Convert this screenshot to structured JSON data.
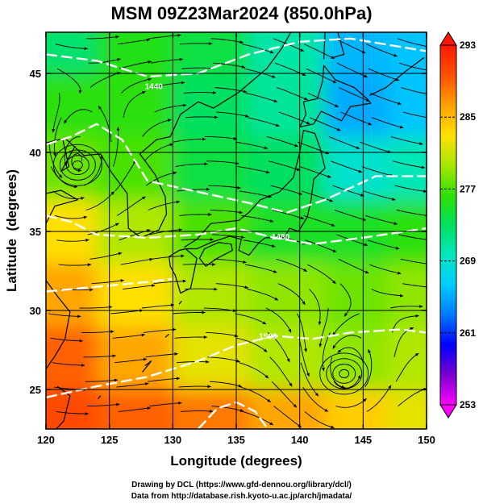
{
  "title": "MSM 09Z23Mar2024 (850.0hPa)",
  "xlabel": "Longitude (degrees)",
  "ylabel": "Latitude  (degrees)",
  "credit": {
    "line1": "Drawing by DCL (https://www.gfd-dennou.org/library/dcl/)",
    "line2": "Data from http://database.rish.kyoto-u.ac.jp/arch/jmadata/"
  },
  "colors": {
    "contour": "#ffffff",
    "streamline": "#000000",
    "coastline": "#000000"
  },
  "chart_data": {
    "type": "heatmap",
    "variable": "temperature (K) with wind streamlines and geopotential height contours",
    "xlim": [
      120,
      150
    ],
    "ylim": [
      22.5,
      47.6
    ],
    "xticks": [
      120,
      125,
      130,
      135,
      140,
      145,
      150
    ],
    "yticks": [
      25,
      30,
      35,
      40,
      45
    ],
    "colorbar": {
      "min": 253,
      "max": 293,
      "ticks": [
        253,
        261,
        269,
        277,
        285,
        293
      ],
      "stops": [
        "#ff00ff",
        "#7a00d0",
        "#0000ff",
        "#0078ff",
        "#00ccff",
        "#00e8c0",
        "#00e060",
        "#30e000",
        "#a8e800",
        "#ffe000",
        "#ffa000",
        "#ff5000",
        "#ff1800"
      ]
    },
    "temperature_samples": [
      {
        "lon": 121,
        "lat": 47,
        "t": 272.5
      },
      {
        "lon": 127,
        "lat": 47,
        "t": 275.5
      },
      {
        "lon": 133,
        "lat": 47,
        "t": 274
      },
      {
        "lon": 139,
        "lat": 47,
        "t": 270.5
      },
      {
        "lon": 145,
        "lat": 47,
        "t": 265.5
      },
      {
        "lon": 149,
        "lat": 47,
        "t": 266
      },
      {
        "lon": 121,
        "lat": 43,
        "t": 276
      },
      {
        "lon": 127,
        "lat": 43,
        "t": 276
      },
      {
        "lon": 133,
        "lat": 43,
        "t": 273
      },
      {
        "lon": 139,
        "lat": 43,
        "t": 271
      },
      {
        "lon": 145,
        "lat": 43,
        "t": 265
      },
      {
        "lon": 149,
        "lat": 43,
        "t": 266
      },
      {
        "lon": 121,
        "lat": 39,
        "t": 278
      },
      {
        "lon": 127,
        "lat": 39,
        "t": 277
      },
      {
        "lon": 133,
        "lat": 39,
        "t": 274
      },
      {
        "lon": 139,
        "lat": 39,
        "t": 273
      },
      {
        "lon": 145,
        "lat": 39,
        "t": 269
      },
      {
        "lon": 149,
        "lat": 39,
        "t": 270
      },
      {
        "lon": 121,
        "lat": 35,
        "t": 283
      },
      {
        "lon": 127,
        "lat": 35,
        "t": 280
      },
      {
        "lon": 133,
        "lat": 35,
        "t": 277
      },
      {
        "lon": 139,
        "lat": 35,
        "t": 275
      },
      {
        "lon": 145,
        "lat": 35,
        "t": 275
      },
      {
        "lon": 149,
        "lat": 35,
        "t": 276
      },
      {
        "lon": 121,
        "lat": 31,
        "t": 286
      },
      {
        "lon": 127,
        "lat": 31,
        "t": 283
      },
      {
        "lon": 133,
        "lat": 31,
        "t": 280
      },
      {
        "lon": 139,
        "lat": 31,
        "t": 279
      },
      {
        "lon": 145,
        "lat": 31,
        "t": 278
      },
      {
        "lon": 149,
        "lat": 31,
        "t": 279
      },
      {
        "lon": 121,
        "lat": 27,
        "t": 289
      },
      {
        "lon": 127,
        "lat": 27,
        "t": 286
      },
      {
        "lon": 133,
        "lat": 27,
        "t": 282
      },
      {
        "lon": 139,
        "lat": 27,
        "t": 280
      },
      {
        "lon": 145,
        "lat": 27,
        "t": 279
      },
      {
        "lon": 149,
        "lat": 27,
        "t": 280
      },
      {
        "lon": 121,
        "lat": 23,
        "t": 290
      },
      {
        "lon": 127,
        "lat": 23,
        "t": 289
      },
      {
        "lon": 133,
        "lat": 23,
        "t": 288
      },
      {
        "lon": 139,
        "lat": 23,
        "t": 286
      },
      {
        "lon": 145,
        "lat": 23,
        "t": 284
      },
      {
        "lon": 149,
        "lat": 23,
        "t": 282
      }
    ],
    "height_contours": [
      {
        "label": "1440",
        "label_at": [
          128.5,
          44.0
        ],
        "points": [
          [
            120,
            46.2
          ],
          [
            124,
            45.8
          ],
          [
            128,
            44.8
          ],
          [
            132,
            45.0
          ],
          [
            136,
            46.2
          ],
          [
            140,
            47.0
          ],
          [
            144,
            47.2
          ],
          [
            150,
            46.4
          ]
        ]
      },
      {
        "label": "",
        "label_at": null,
        "points": [
          [
            120,
            40.5
          ],
          [
            122,
            41.0
          ],
          [
            124,
            41.8
          ],
          [
            126,
            40.8
          ],
          [
            128,
            38.2
          ],
          [
            132,
            37.5
          ],
          [
            136,
            36.8
          ],
          [
            139,
            36.2
          ],
          [
            142,
            37.0
          ],
          [
            146,
            38.5
          ],
          [
            150,
            38.5
          ]
        ]
      },
      {
        "label": "1480",
        "label_at": [
          138.5,
          34.5
        ],
        "points": [
          [
            120,
            36.0
          ],
          [
            122,
            35.6
          ],
          [
            124,
            34.8
          ],
          [
            128,
            34.6
          ],
          [
            132,
            34.8
          ],
          [
            135,
            35.2
          ],
          [
            138,
            34.6
          ],
          [
            141,
            34.2
          ],
          [
            145,
            34.6
          ],
          [
            150,
            35.2
          ]
        ]
      },
      {
        "label": "",
        "label_at": null,
        "points": [
          [
            120,
            31.2
          ],
          [
            124,
            31.5
          ],
          [
            128,
            31.8
          ],
          [
            130,
            32.0
          ]
        ]
      },
      {
        "label": "1500",
        "label_at": [
          137.5,
          28.2
        ],
        "points": [
          [
            120,
            24.5
          ],
          [
            124,
            25.2
          ],
          [
            128,
            25.8
          ],
          [
            132,
            26.8
          ],
          [
            135,
            27.8
          ],
          [
            138,
            28.4
          ],
          [
            141,
            28.2
          ],
          [
            144,
            28.6
          ],
          [
            148,
            28.8
          ],
          [
            150,
            28.6
          ]
        ]
      },
      {
        "label": "",
        "label_at": null,
        "points": [
          [
            132,
            22.5
          ],
          [
            133.5,
            23.8
          ],
          [
            135,
            24.2
          ],
          [
            136.5,
            23.6
          ],
          [
            137.5,
            22.5
          ]
        ]
      }
    ],
    "circulation_centers": [
      {
        "type": "cyclone",
        "lon": 122.5,
        "lat": 39.2
      },
      {
        "type": "cyclone",
        "lon": 143.5,
        "lat": 26.0
      }
    ]
  }
}
